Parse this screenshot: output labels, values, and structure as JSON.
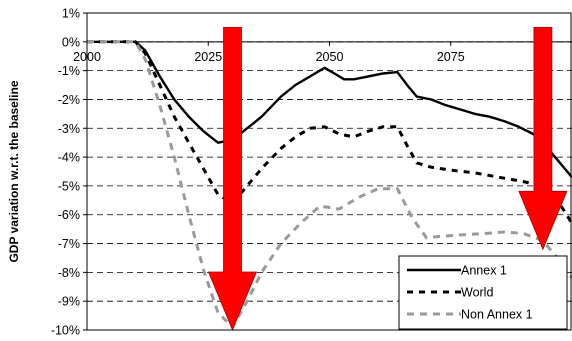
{
  "chart_data": {
    "type": "line",
    "ylabel": "GDP variation w.r.t. the baseline",
    "xlabel": "",
    "title": "",
    "xlim": [
      2000,
      2100
    ],
    "ylim": [
      -10,
      1
    ],
    "x_ticks": [
      2000,
      2025,
      2050,
      2075
    ],
    "x_tick_labels": [
      "2000",
      "2025",
      "2050",
      "2075"
    ],
    "y_ticks": [
      1,
      0,
      -1,
      -2,
      -3,
      -4,
      -5,
      -6,
      -7,
      -8,
      -9,
      -10
    ],
    "y_tick_labels": [
      "1%",
      "0%",
      "-1%",
      "-2%",
      "-3%",
      "-4%",
      "-5%",
      "-6%",
      "-7%",
      "-8%",
      "-9%",
      "-10%"
    ],
    "grid": "horizontal-dashed",
    "legend_position": "bottom-right",
    "series": [
      {
        "name": "Annex 1",
        "style": "solid",
        "color": "#000000",
        "points": [
          [
            2000,
            0
          ],
          [
            2010,
            0
          ],
          [
            2012,
            -0.3
          ],
          [
            2015,
            -1.2
          ],
          [
            2018,
            -2
          ],
          [
            2021,
            -2.6
          ],
          [
            2024,
            -3.1
          ],
          [
            2027,
            -3.5
          ],
          [
            2030,
            -3.4
          ],
          [
            2033,
            -3.0
          ],
          [
            2036,
            -2.6
          ],
          [
            2040,
            -1.9
          ],
          [
            2043,
            -1.5
          ],
          [
            2046,
            -1.2
          ],
          [
            2049,
            -0.9
          ],
          [
            2051,
            -1.1
          ],
          [
            2053,
            -1.3
          ],
          [
            2055,
            -1.3
          ],
          [
            2058,
            -1.2
          ],
          [
            2061,
            -1.1
          ],
          [
            2064,
            -1.05
          ],
          [
            2066,
            -1.5
          ],
          [
            2068,
            -1.9
          ],
          [
            2071,
            -2.0
          ],
          [
            2074,
            -2.2
          ],
          [
            2077,
            -2.35
          ],
          [
            2080,
            -2.5
          ],
          [
            2083,
            -2.6
          ],
          [
            2086,
            -2.75
          ],
          [
            2089,
            -2.95
          ],
          [
            2092,
            -3.2
          ],
          [
            2094,
            -3.5
          ],
          [
            2096,
            -3.9
          ],
          [
            2098,
            -4.3
          ],
          [
            2100,
            -4.7
          ]
        ]
      },
      {
        "name": "World",
        "style": "dashed",
        "color": "#000000",
        "points": [
          [
            2000,
            0
          ],
          [
            2010,
            0
          ],
          [
            2012,
            -0.4
          ],
          [
            2015,
            -1.5
          ],
          [
            2018,
            -2.6
          ],
          [
            2021,
            -3.5
          ],
          [
            2024,
            -4.4
          ],
          [
            2027,
            -5.3
          ],
          [
            2030,
            -5.6
          ],
          [
            2033,
            -5.0
          ],
          [
            2036,
            -4.4
          ],
          [
            2040,
            -3.7
          ],
          [
            2043,
            -3.3
          ],
          [
            2046,
            -3.0
          ],
          [
            2049,
            -2.95
          ],
          [
            2052,
            -3.2
          ],
          [
            2055,
            -3.3
          ],
          [
            2058,
            -3.1
          ],
          [
            2061,
            -2.95
          ],
          [
            2064,
            -2.95
          ],
          [
            2066,
            -3.6
          ],
          [
            2068,
            -4.2
          ],
          [
            2071,
            -4.35
          ],
          [
            2075,
            -4.45
          ],
          [
            2080,
            -4.55
          ],
          [
            2085,
            -4.7
          ],
          [
            2090,
            -4.85
          ],
          [
            2094,
            -5.0
          ],
          [
            2097,
            -5.5
          ],
          [
            2100,
            -6.3
          ]
        ]
      },
      {
        "name": "Non Annex 1",
        "style": "dashed",
        "color": "#999999",
        "points": [
          [
            2000,
            0
          ],
          [
            2010,
            0
          ],
          [
            2012,
            -0.6
          ],
          [
            2015,
            -2.2
          ],
          [
            2018,
            -4.0
          ],
          [
            2021,
            -6.0
          ],
          [
            2024,
            -7.9
          ],
          [
            2027,
            -9.4
          ],
          [
            2030,
            -9.9
          ],
          [
            2033,
            -9.0
          ],
          [
            2036,
            -8.0
          ],
          [
            2040,
            -7.0
          ],
          [
            2044,
            -6.3
          ],
          [
            2048,
            -5.7
          ],
          [
            2052,
            -5.8
          ],
          [
            2056,
            -5.4
          ],
          [
            2060,
            -5.1
          ],
          [
            2064,
            -5.1
          ],
          [
            2067,
            -6.1
          ],
          [
            2070,
            -6.8
          ],
          [
            2073,
            -6.75
          ],
          [
            2077,
            -6.7
          ],
          [
            2082,
            -6.65
          ],
          [
            2086,
            -6.6
          ],
          [
            2090,
            -6.65
          ],
          [
            2094,
            -6.9
          ],
          [
            2097,
            -7.5
          ],
          [
            2100,
            -8.2
          ]
        ]
      }
    ],
    "annotations": [
      {
        "type": "down-arrow",
        "color": "#ff0000",
        "x": 2030,
        "y_from": 0.5,
        "y_to": -10
      },
      {
        "type": "down-arrow",
        "color": "#ff0000",
        "x": 2094,
        "y_from": 0.5,
        "y_to": -7.2
      }
    ]
  }
}
